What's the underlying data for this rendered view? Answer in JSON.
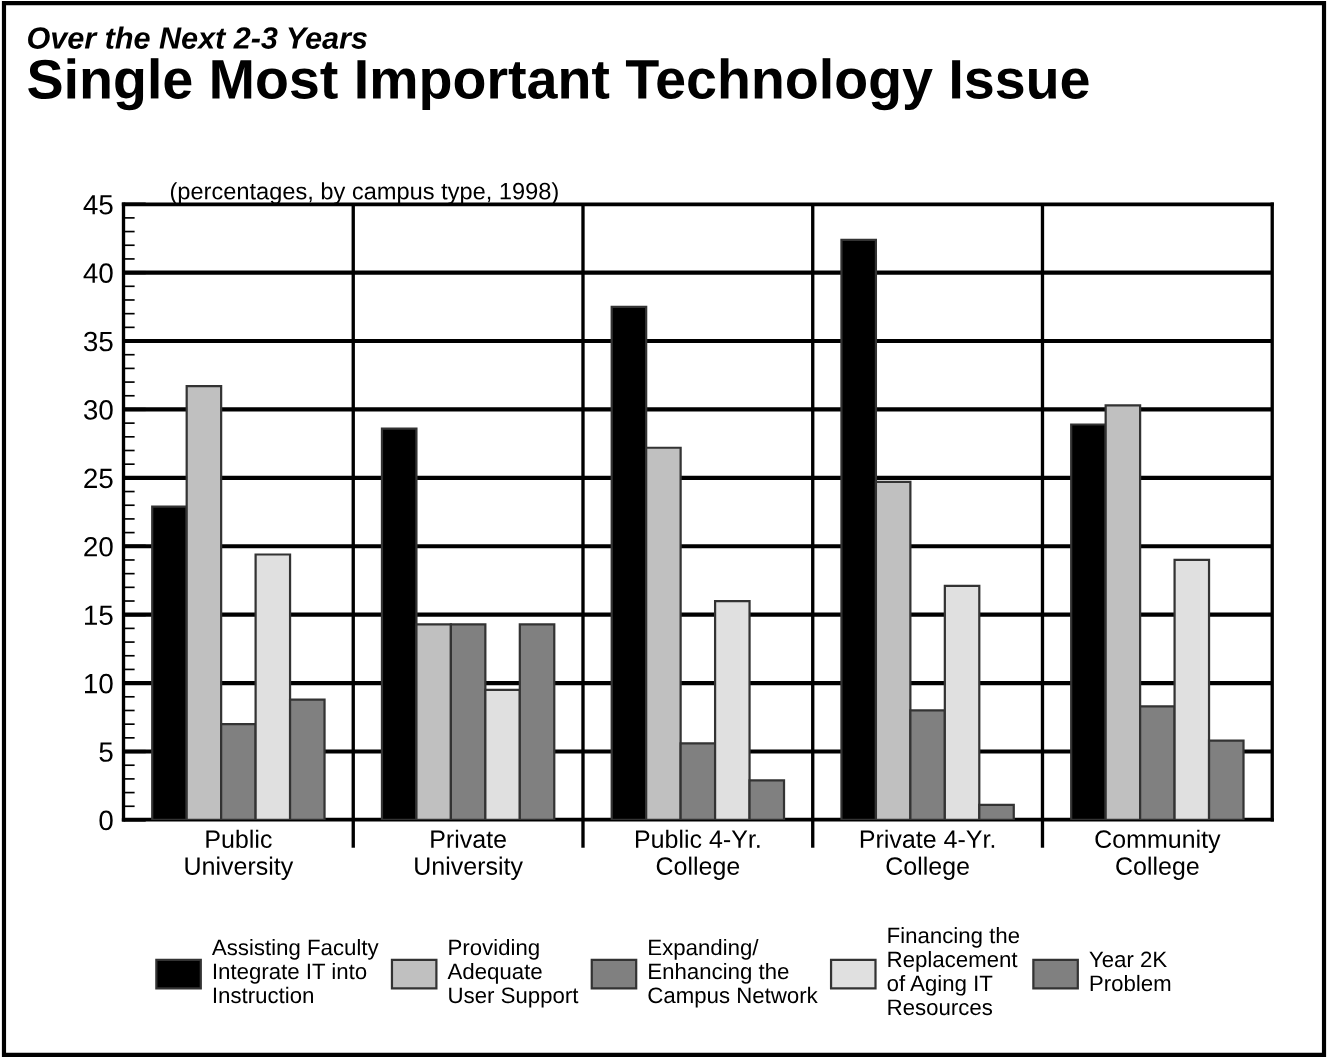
{
  "chart_data": {
    "type": "bar",
    "subtitle": "Over the Next 2-3 Years",
    "title": "Single Most Important Technology Issue",
    "annotations": [
      "(percentages, by campus type, 1998)"
    ],
    "categories": [
      "Public\nUniversity",
      "Private\nUniversity",
      "Public 4-Yr.\nCollege",
      "Private 4-Yr.\nCollege",
      "Community\nCollege"
    ],
    "series": [
      {
        "name": "Assisting Faculty\nIntegrate IT into\nInstruction",
        "color": "#000000",
        "values": [
          22.9,
          28.6,
          37.5,
          42.4,
          28.9
        ]
      },
      {
        "name": "Providing\nAdequate\nUser Support",
        "color": "#c0c0c0",
        "values": [
          31.7,
          14.3,
          27.2,
          24.7,
          30.3
        ]
      },
      {
        "name": "Expanding/\nEnhancing the\nCampus Network",
        "color": "#808080",
        "values": [
          7.0,
          14.3,
          5.6,
          8.0,
          8.3
        ]
      },
      {
        "name": "Financing the\nReplacement\nof Aging IT\nResources",
        "color": "#e0e0e0",
        "values": [
          19.4,
          9.5,
          16.0,
          17.1,
          19.0
        ]
      },
      {
        "name": "Year 2K\nProblem",
        "color": "#808080",
        "values": [
          8.8,
          14.3,
          2.9,
          1.1,
          5.8
        ]
      }
    ],
    "ylim": [
      0,
      45
    ],
    "yticks": [
      0,
      5,
      10,
      15,
      20,
      25,
      30,
      35,
      40,
      45
    ],
    "grid": true,
    "legend": "bottom"
  }
}
